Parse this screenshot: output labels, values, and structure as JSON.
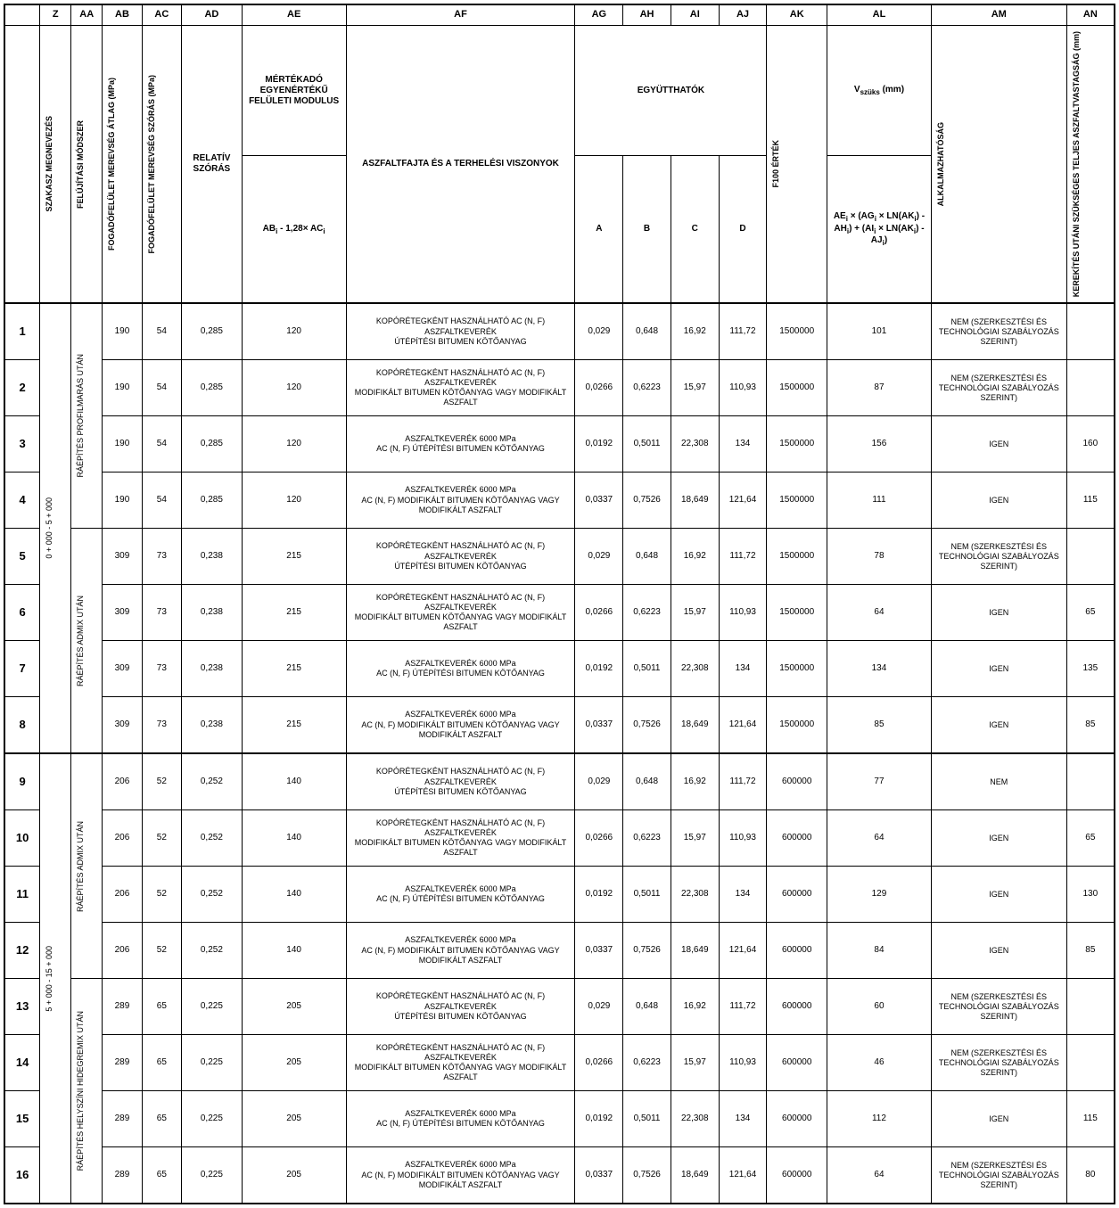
{
  "colLetters": [
    "",
    "Z",
    "AA",
    "AB",
    "AC",
    "AD",
    "AE",
    "AF",
    "AG",
    "AH",
    "AI",
    "AJ",
    "AK",
    "AL",
    "AM",
    "AN"
  ],
  "headers": {
    "z": "SZAKASZ MEGNEVEZÉS",
    "aa": "FELÚJÍTÁSI MÓDSZER",
    "ab": "FOGADÓFELÜLET MEREVSÉG ÁTLAG (MPa)",
    "ac": "FOGADÓFELÜLET MEREVSÉG SZÓRÁS (MPa)",
    "ad": "RELATÍV SZÓRÁS",
    "ae_top": "MÉRTÉKADÓ EGYENÉRTÉKŰ FELÜLETI MODULUS",
    "ae_bottom": "ABᵢ - 1,28× ACᵢ",
    "af": "ASZFALTFAJTA ÉS A TERHELÉSI VISZONYOK",
    "ag_group": "EGYÜTTHATÓK",
    "ag": "A",
    "ah": "B",
    "ai": "C",
    "aj": "D",
    "ak": "F100 ÉRTÉK",
    "al_top": "Vszüks (mm)",
    "al_bottom": "AEᵢ × (AGᵢ × LN(AKᵢ) - AHᵢ) + (AIᵢ × LN(AKᵢ) - AJᵢ)",
    "am": "ALKALMAZHATÓSÁG",
    "an": "KEREKÍTÉS UTÁNI SZÜKSÉGES TELJES ASZFALTVASTAGSÁG (mm)"
  },
  "sections": {
    "z1": "0 + 000 - 5 + 000",
    "z2": "5 + 000 - 15 + 000",
    "aa1": "RÁÉPÍTÉS PROFILMARÁS UTÁN",
    "aa2": "RÁÉPÍTÉS ADMIX UTÁN",
    "aa3": "RÁÉPÍTÉS ADMIX UTÁN",
    "aa4": "RÁÉPÍTÉS HELYSZÍNI HIDEGREMIX UTÁN"
  },
  "afTexts": {
    "t1": "KOPÓRÉTEGKÉNT HASZNÁLHATÓ AC (N, F) ASZFALTKEVERÉK\nÚTÉPÍTÉSI BITUMEN KÖTŐANYAG",
    "t2": "KOPÓRÉTEGKÉNT HASZNÁLHATÓ AC (N, F) ASZFALTKEVERÉK\nMODIFIKÁLT BITUMEN KÖTŐANYAG VAGY MODIFIKÁLT ASZFALT",
    "t3": "ASZFALTKEVERÉK 6000 MPa\nAC (N, F) ÚTÉPÍTÉSI BITUMEN KÖTŐANYAG",
    "t4": "ASZFALTKEVERÉK 6000 MPa\nAC (N, F) MODIFIKÁLT BITUMEN KÖTŐANYAG VAGY MODIFIKÁLT ASZFALT"
  },
  "amTexts": {
    "nem_full": "NEM (SZERKESZTÉSI ÉS TECHNOLÓGIAI SZABÁLYOZÁS SZERINT)",
    "nem": "NEM",
    "igen": "IGEN"
  },
  "rows": [
    {
      "n": "1",
      "ab": "190",
      "ac": "54",
      "ad": "0,285",
      "ae": "120",
      "af": "t1",
      "ag": "0,029",
      "ah": "0,648",
      "ai": "16,92",
      "aj": "111,72",
      "ak": "1500000",
      "al": "101",
      "am": "nem_full",
      "an": ""
    },
    {
      "n": "2",
      "ab": "190",
      "ac": "54",
      "ad": "0,285",
      "ae": "120",
      "af": "t2",
      "ag": "0,0266",
      "ah": "0,6223",
      "ai": "15,97",
      "aj": "110,93",
      "ak": "1500000",
      "al": "87",
      "am": "nem_full",
      "an": ""
    },
    {
      "n": "3",
      "ab": "190",
      "ac": "54",
      "ad": "0,285",
      "ae": "120",
      "af": "t3",
      "ag": "0,0192",
      "ah": "0,5011",
      "ai": "22,308",
      "aj": "134",
      "ak": "1500000",
      "al": "156",
      "am": "igen",
      "an": "160"
    },
    {
      "n": "4",
      "ab": "190",
      "ac": "54",
      "ad": "0,285",
      "ae": "120",
      "af": "t4",
      "ag": "0,0337",
      "ah": "0,7526",
      "ai": "18,649",
      "aj": "121,64",
      "ak": "1500000",
      "al": "111",
      "am": "igen",
      "an": "115"
    },
    {
      "n": "5",
      "ab": "309",
      "ac": "73",
      "ad": "0,238",
      "ae": "215",
      "af": "t1",
      "ag": "0,029",
      "ah": "0,648",
      "ai": "16,92",
      "aj": "111,72",
      "ak": "1500000",
      "al": "78",
      "am": "nem_full",
      "an": ""
    },
    {
      "n": "6",
      "ab": "309",
      "ac": "73",
      "ad": "0,238",
      "ae": "215",
      "af": "t2",
      "ag": "0,0266",
      "ah": "0,6223",
      "ai": "15,97",
      "aj": "110,93",
      "ak": "1500000",
      "al": "64",
      "am": "igen",
      "an": "65"
    },
    {
      "n": "7",
      "ab": "309",
      "ac": "73",
      "ad": "0,238",
      "ae": "215",
      "af": "t3",
      "ag": "0,0192",
      "ah": "0,5011",
      "ai": "22,308",
      "aj": "134",
      "ak": "1500000",
      "al": "134",
      "am": "igen",
      "an": "135"
    },
    {
      "n": "8",
      "ab": "309",
      "ac": "73",
      "ad": "0,238",
      "ae": "215",
      "af": "t4",
      "ag": "0,0337",
      "ah": "0,7526",
      "ai": "18,649",
      "aj": "121,64",
      "ak": "1500000",
      "al": "85",
      "am": "igen",
      "an": "85"
    },
    {
      "n": "9",
      "ab": "206",
      "ac": "52",
      "ad": "0,252",
      "ae": "140",
      "af": "t1",
      "ag": "0,029",
      "ah": "0,648",
      "ai": "16,92",
      "aj": "111,72",
      "ak": "600000",
      "al": "77",
      "am": "nem",
      "an": ""
    },
    {
      "n": "10",
      "ab": "206",
      "ac": "52",
      "ad": "0,252",
      "ae": "140",
      "af": "t2",
      "ag": "0,0266",
      "ah": "0,6223",
      "ai": "15,97",
      "aj": "110,93",
      "ak": "600000",
      "al": "64",
      "am": "igen",
      "an": "65"
    },
    {
      "n": "11",
      "ab": "206",
      "ac": "52",
      "ad": "0,252",
      "ae": "140",
      "af": "t3",
      "ag": "0,0192",
      "ah": "0,5011",
      "ai": "22,308",
      "aj": "134",
      "ak": "600000",
      "al": "129",
      "am": "igen",
      "an": "130"
    },
    {
      "n": "12",
      "ab": "206",
      "ac": "52",
      "ad": "0,252",
      "ae": "140",
      "af": "t4",
      "ag": "0,0337",
      "ah": "0,7526",
      "ai": "18,649",
      "aj": "121,64",
      "ak": "600000",
      "al": "84",
      "am": "igen",
      "an": "85"
    },
    {
      "n": "13",
      "ab": "289",
      "ac": "65",
      "ad": "0,225",
      "ae": "205",
      "af": "t1",
      "ag": "0,029",
      "ah": "0,648",
      "ai": "16,92",
      "aj": "111,72",
      "ak": "600000",
      "al": "60",
      "am": "nem_full",
      "an": ""
    },
    {
      "n": "14",
      "ab": "289",
      "ac": "65",
      "ad": "0,225",
      "ae": "205",
      "af": "t2",
      "ag": "0,0266",
      "ah": "0,6223",
      "ai": "15,97",
      "aj": "110,93",
      "ak": "600000",
      "al": "46",
      "am": "nem_full",
      "an": ""
    },
    {
      "n": "15",
      "ab": "289",
      "ac": "65",
      "ad": "0,225",
      "ae": "205",
      "af": "t3",
      "ag": "0,0192",
      "ah": "0,5011",
      "ai": "22,308",
      "aj": "134",
      "ak": "600000",
      "al": "112",
      "am": "igen",
      "an": "115"
    },
    {
      "n": "16",
      "ab": "289",
      "ac": "65",
      "ad": "0,225",
      "ae": "205",
      "af": "t4",
      "ag": "0,0337",
      "ah": "0,7526",
      "ai": "18,649",
      "aj": "121,64",
      "ak": "600000",
      "al": "64",
      "am": "nem_full",
      "an": "80"
    }
  ],
  "colWidths": {
    "num": 34,
    "z": 30,
    "aa": 30,
    "ab": 38,
    "ac": 38,
    "ad": 58,
    "ae": 100,
    "af": 220,
    "ag": 46,
    "ah": 46,
    "ai": 46,
    "aj": 46,
    "ak": 58,
    "al": 100,
    "am": 130,
    "an": 46
  },
  "style": {
    "font": "Arial",
    "fontSize": 10,
    "bg": "#ffffff",
    "fg": "#000000",
    "border": "#000000"
  }
}
